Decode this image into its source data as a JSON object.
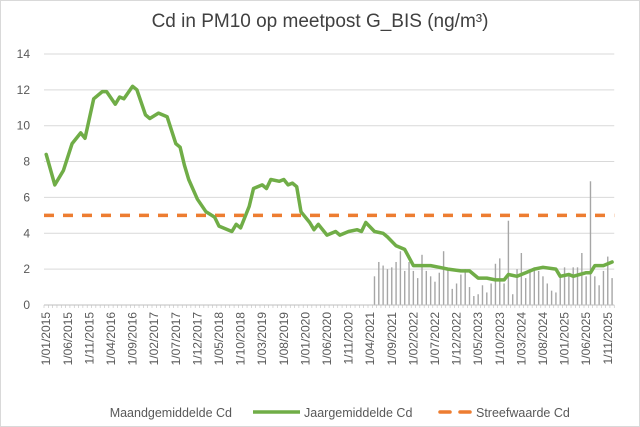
{
  "chart_data": {
    "type": "bar+line",
    "title": "Cd in PM10 op meetpost G_BIS (ng/m³)",
    "xlabel": "",
    "ylabel": "",
    "ylim": [
      0,
      14
    ],
    "yticks": [
      0,
      2,
      4,
      6,
      8,
      10,
      12,
      14
    ],
    "grid": true,
    "legend_position": "bottom",
    "x_range": [
      "2015-01",
      "2025-12"
    ],
    "xtick_labels": [
      "1/01/2015",
      "1/06/2015",
      "1/11/2015",
      "1/04/2016",
      "1/09/2016",
      "1/02/2017",
      "1/07/2017",
      "1/12/2017",
      "1/05/2018",
      "1/10/2018",
      "1/03/2019",
      "1/08/2019",
      "1/01/2020",
      "1/06/2020",
      "1/11/2020",
      "1/04/2021",
      "1/09/2021",
      "1/02/2022",
      "1/07/2022",
      "1/12/2022",
      "1/05/2023",
      "1/10/2023",
      "1/03/2024",
      "1/08/2024",
      "1/01/2025",
      "1/06/2025",
      "1/11/2025"
    ],
    "series": [
      {
        "name": "Maandgemiddelde Cd",
        "type": "bar",
        "color": "#a6a6a6",
        "start": "2021-05",
        "values": [
          1.6,
          2.4,
          2.2,
          2.0,
          2.1,
          2.4,
          3.0,
          1.9,
          2.4,
          1.9,
          1.5,
          2.8,
          1.9,
          1.6,
          1.3,
          1.8,
          3.0,
          2.0,
          0.9,
          1.2,
          1.7,
          2.0,
          1.0,
          0.5,
          0.6,
          1.1,
          0.7,
          1.2,
          2.3,
          2.6,
          1.2,
          4.7,
          0.6,
          2.0,
          2.9,
          1.5,
          1.9,
          2.1,
          1.9,
          1.6,
          1.2,
          0.8,
          0.7,
          1.6,
          2.1,
          1.7,
          2.1,
          2.1,
          2.9,
          1.6,
          6.9,
          1.6,
          1.1,
          1.9,
          2.7,
          1.5
        ]
      },
      {
        "name": "Jaargemiddelde Cd",
        "type": "line",
        "color": "#70ad47",
        "points": [
          [
            "2015-01",
            8.4
          ],
          [
            "2015-03",
            6.7
          ],
          [
            "2015-05",
            7.5
          ],
          [
            "2015-07",
            9.0
          ],
          [
            "2015-09",
            9.6
          ],
          [
            "2015-10",
            9.3
          ],
          [
            "2015-12",
            11.5
          ],
          [
            "2016-02",
            11.9
          ],
          [
            "2016-03",
            11.9
          ],
          [
            "2016-05",
            11.2
          ],
          [
            "2016-06",
            11.6
          ],
          [
            "2016-07",
            11.5
          ],
          [
            "2016-09",
            12.2
          ],
          [
            "2016-10",
            12.0
          ],
          [
            "2016-12",
            10.6
          ],
          [
            "2017-01",
            10.4
          ],
          [
            "2017-03",
            10.7
          ],
          [
            "2017-05",
            10.5
          ],
          [
            "2017-07",
            9.0
          ],
          [
            "2017-08",
            8.8
          ],
          [
            "2017-09",
            7.8
          ],
          [
            "2017-10",
            7.0
          ],
          [
            "2017-12",
            5.9
          ],
          [
            "2018-02",
            5.2
          ],
          [
            "2018-04",
            4.9
          ],
          [
            "2018-05",
            4.4
          ],
          [
            "2018-08",
            4.1
          ],
          [
            "2018-09",
            4.5
          ],
          [
            "2018-10",
            4.3
          ],
          [
            "2018-12",
            5.5
          ],
          [
            "2019-01",
            6.5
          ],
          [
            "2019-03",
            6.7
          ],
          [
            "2019-04",
            6.5
          ],
          [
            "2019-05",
            7.0
          ],
          [
            "2019-07",
            6.9
          ],
          [
            "2019-08",
            7.0
          ],
          [
            "2019-09",
            6.7
          ],
          [
            "2019-10",
            6.8
          ],
          [
            "2019-11",
            6.6
          ],
          [
            "2019-12",
            5.2
          ],
          [
            "2020-02",
            4.6
          ],
          [
            "2020-03",
            4.2
          ],
          [
            "2020-04",
            4.5
          ],
          [
            "2020-06",
            3.9
          ],
          [
            "2020-08",
            4.1
          ],
          [
            "2020-09",
            3.9
          ],
          [
            "2020-11",
            4.1
          ],
          [
            "2021-01",
            4.2
          ],
          [
            "2021-02",
            4.1
          ],
          [
            "2021-03",
            4.6
          ],
          [
            "2021-05",
            4.1
          ],
          [
            "2021-07",
            4.0
          ],
          [
            "2021-08",
            3.8
          ],
          [
            "2021-10",
            3.3
          ],
          [
            "2021-12",
            3.1
          ],
          [
            "2022-02",
            2.2
          ],
          [
            "2022-06",
            2.2
          ],
          [
            "2022-08",
            2.1
          ],
          [
            "2022-10",
            2.0
          ],
          [
            "2023-01",
            1.9
          ],
          [
            "2023-03",
            1.9
          ],
          [
            "2023-05",
            1.5
          ],
          [
            "2023-07",
            1.5
          ],
          [
            "2023-09",
            1.4
          ],
          [
            "2023-11",
            1.4
          ],
          [
            "2023-12",
            1.7
          ],
          [
            "2024-02",
            1.6
          ],
          [
            "2024-04",
            1.8
          ],
          [
            "2024-06",
            2.0
          ],
          [
            "2024-08",
            2.1
          ],
          [
            "2024-11",
            2.0
          ],
          [
            "2024-12",
            1.6
          ],
          [
            "2025-02",
            1.7
          ],
          [
            "2025-03",
            1.6
          ],
          [
            "2025-06",
            1.8
          ],
          [
            "2025-07",
            1.8
          ],
          [
            "2025-08",
            2.2
          ],
          [
            "2025-10",
            2.2
          ],
          [
            "2025-12",
            2.4
          ]
        ]
      },
      {
        "name": "Streefwaarde Cd",
        "type": "line-dashed",
        "color": "#ed7d31",
        "value": 5
      }
    ]
  }
}
